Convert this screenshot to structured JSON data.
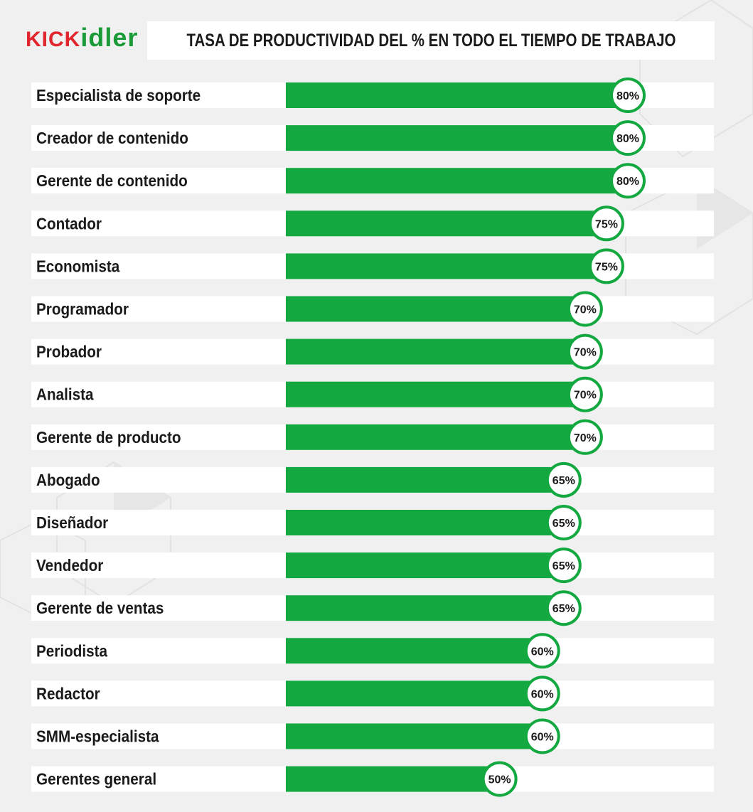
{
  "brand": {
    "logo_kick": "KICK",
    "logo_idler": "idler"
  },
  "colors": {
    "bar": "#14a840",
    "circle_border": "#14a840",
    "row_bg": "#ffffff",
    "logo_red": "#e0252c",
    "logo_green": "#1a9b37"
  },
  "chart_data": {
    "type": "bar",
    "orientation": "horizontal",
    "title": "TASA DE PRODUCTIVIDAD DEL % EN TODO EL TIEMPO DE TRABAJO",
    "xlabel": "",
    "ylabel": "",
    "xlim": [
      0,
      100
    ],
    "grid": false,
    "categories": [
      "Especialista de soporte",
      "Creador de contenido",
      "Gerente de contenido",
      "Contador",
      "Economista",
      "Programador",
      "Probador",
      "Analista",
      "Gerente de producto",
      "Abogado",
      "Diseñador",
      "Vendedor",
      "Gerente de ventas",
      "Periodista",
      "Redactor",
      "SMM-especialista",
      "Gerentes general"
    ],
    "values": [
      80,
      80,
      80,
      75,
      75,
      70,
      70,
      70,
      70,
      65,
      65,
      65,
      65,
      60,
      60,
      60,
      50
    ],
    "data_labels": [
      "80%",
      "80%",
      "80%",
      "75%",
      "75%",
      "70%",
      "70%",
      "70%",
      "70%",
      "65%",
      "65%",
      "65%",
      "65%",
      "60%",
      "60%",
      "60%",
      "50%"
    ]
  }
}
